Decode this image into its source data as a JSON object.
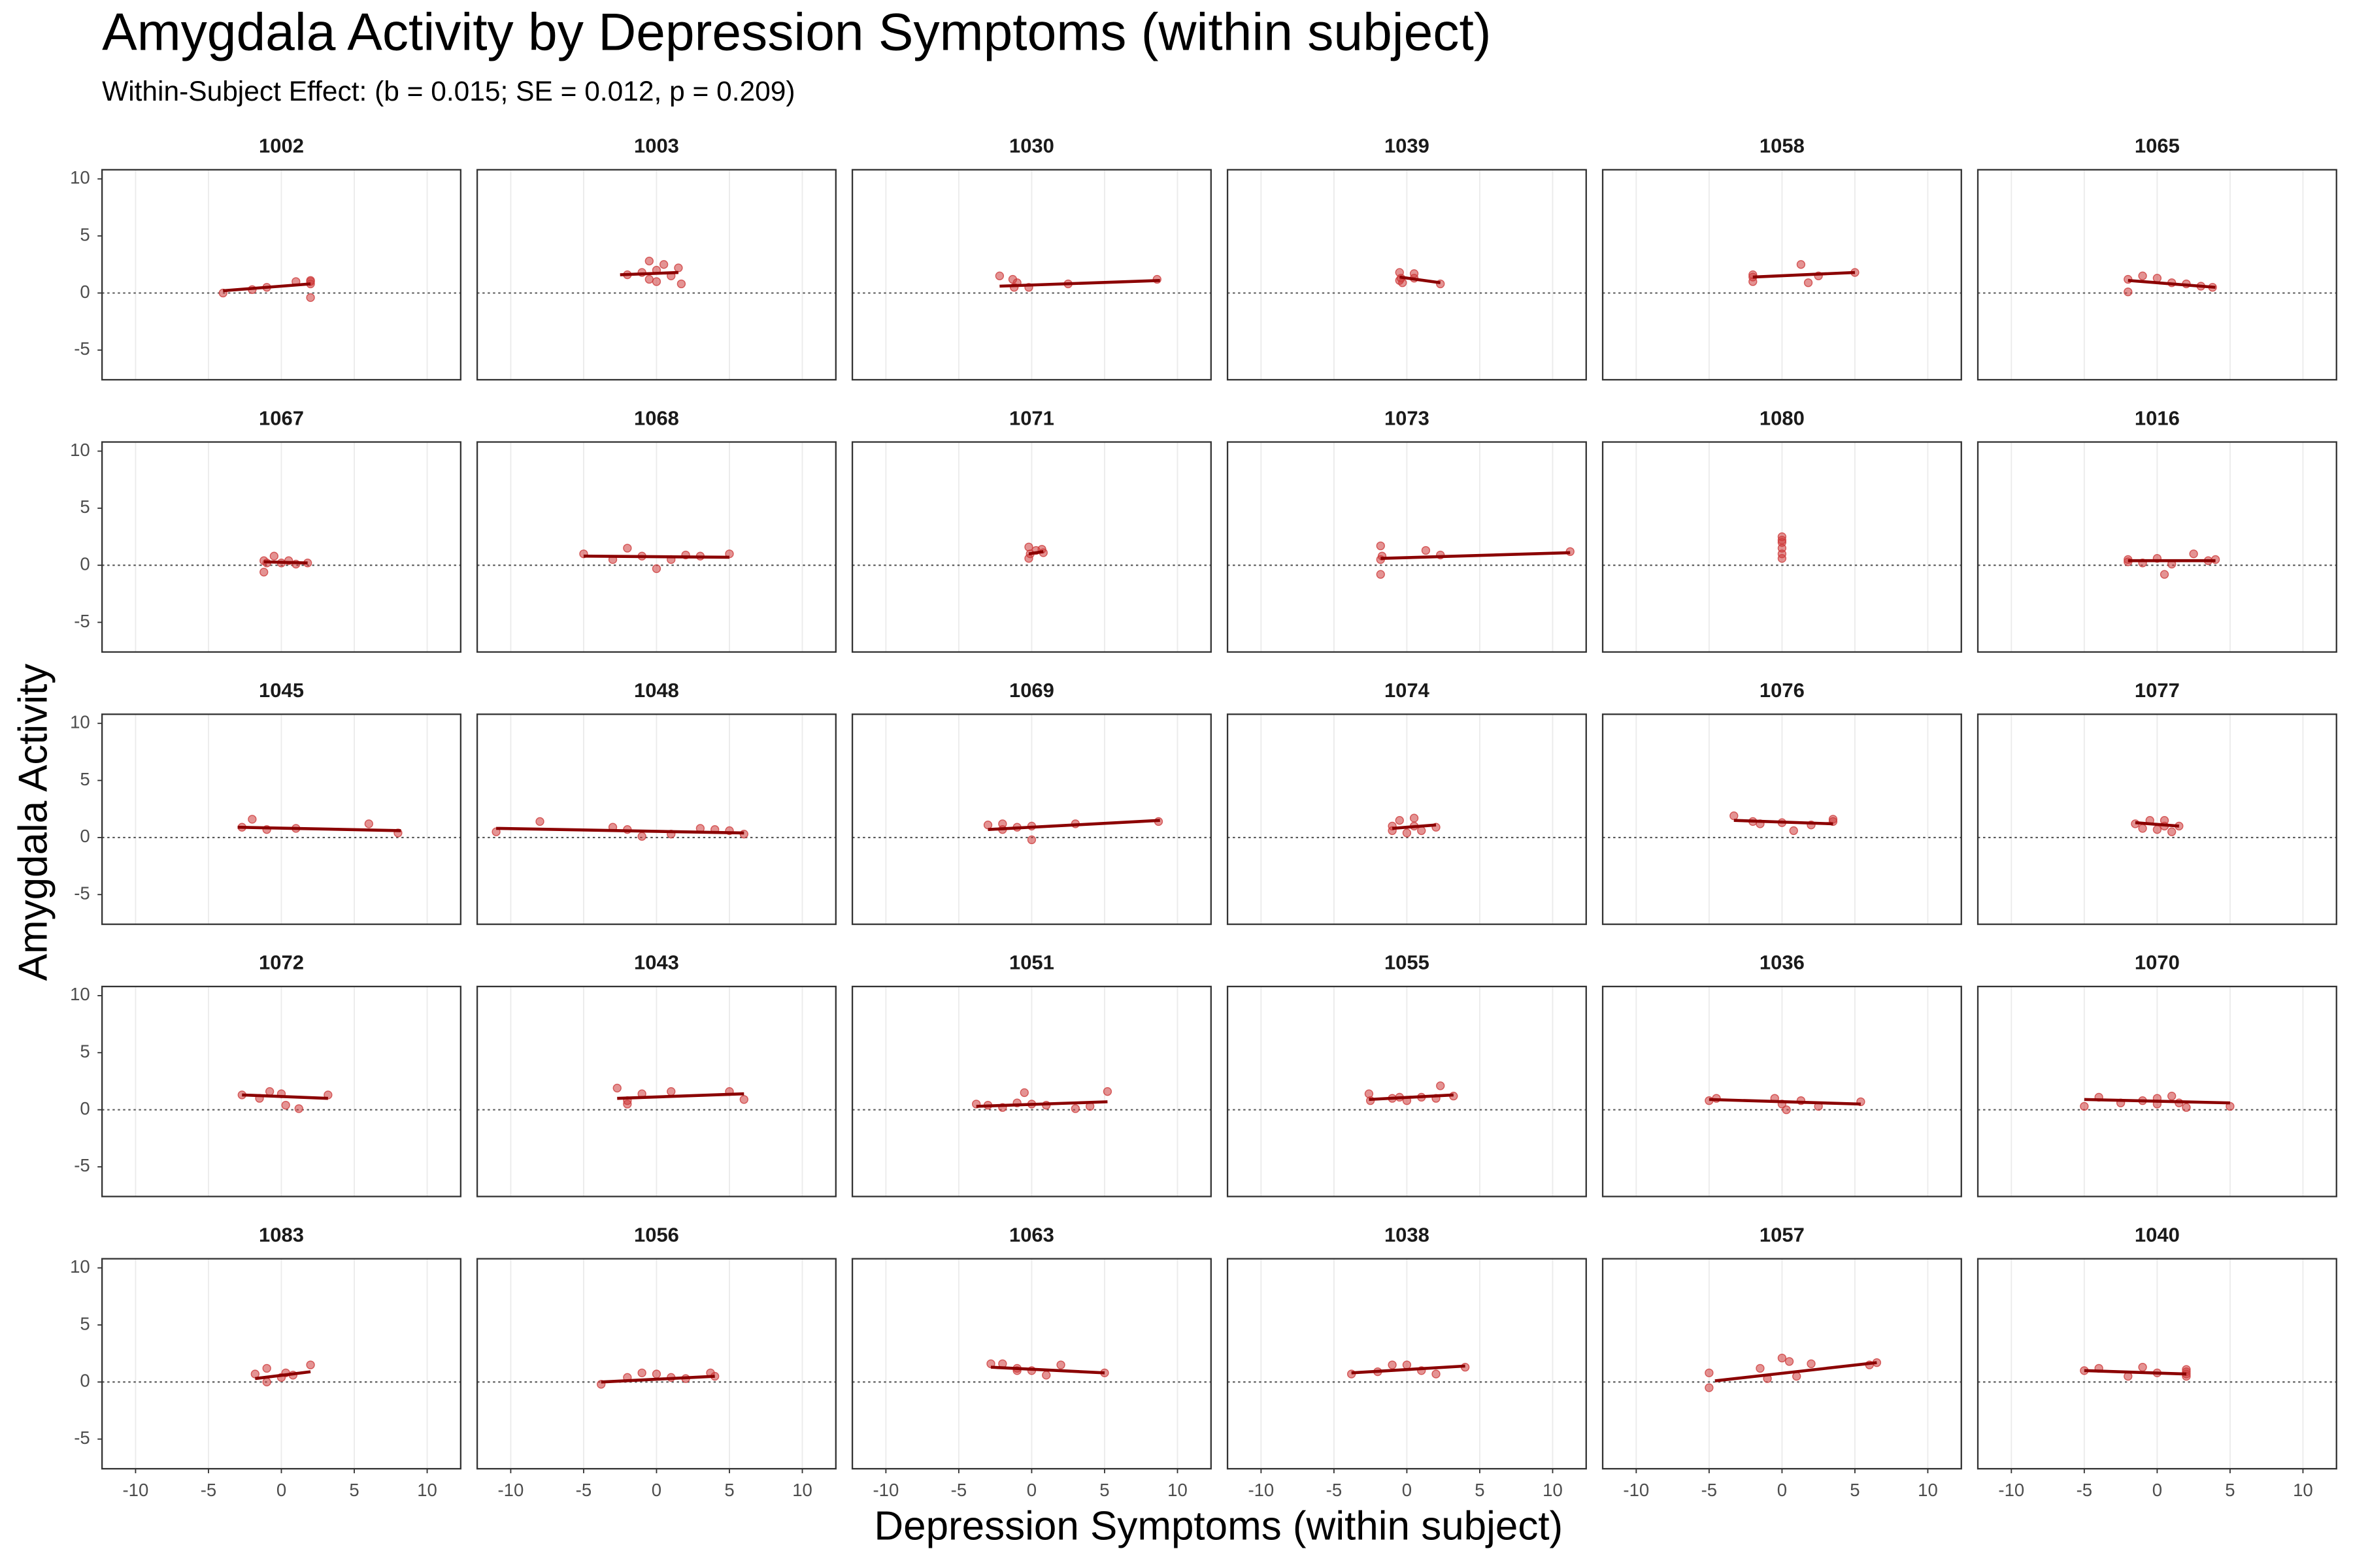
{
  "chart_data": {
    "type": "scatter",
    "title": "Amygdala Activity by Depression Symptoms (within subject)",
    "subtitle": "Within-Subject Effect: (b = 0.015; SE = 0.012, p = 0.209)",
    "xlabel": "Depression Symptoms (within subject)",
    "ylabel": "Amygdala Activity",
    "xlim": [
      -12.3,
      12.3
    ],
    "ylim": [
      -7.6,
      10.8
    ],
    "xticks": [
      -10,
      -5,
      0,
      5,
      10
    ],
    "yticks": [
      -5,
      0,
      5,
      10
    ],
    "hline": 0,
    "grid": true,
    "point_color": "#cd3b3b",
    "line_color": "#8b0000",
    "panels": [
      {
        "title": "1002",
        "x": [
          -4,
          -2,
          -1,
          1,
          2,
          2,
          2,
          2
        ],
        "values": [
          0,
          0.3,
          0.5,
          1.0,
          1.0,
          0.8,
          -0.4,
          1.1
        ],
        "fit": {
          "x": [
            -4,
            2
          ],
          "values": [
            0.2,
            0.8
          ]
        }
      },
      {
        "title": "1003",
        "x": [
          -2,
          -1,
          -0.5,
          -0.5,
          0,
          0,
          0.5,
          1,
          1.5,
          1.7
        ],
        "values": [
          1.6,
          1.8,
          2.8,
          1.2,
          1.0,
          2.0,
          2.5,
          1.5,
          2.2,
          0.8
        ],
        "fit": {
          "x": [
            -2.5,
            1.5
          ],
          "values": [
            1.6,
            1.8
          ]
        }
      },
      {
        "title": "1030",
        "x": [
          -2.2,
          -1.3,
          -1.2,
          -1,
          -0.2,
          2.5,
          8.6
        ],
        "values": [
          1.5,
          1.2,
          0.5,
          0.9,
          0.5,
          0.8,
          1.2
        ],
        "fit": {
          "x": [
            -2.2,
            8.8
          ],
          "values": [
            0.6,
            1.1
          ]
        }
      },
      {
        "title": "1039",
        "x": [
          -0.5,
          -0.5,
          -0.4,
          -0.3,
          0.5,
          0.5,
          2.3
        ],
        "values": [
          1.8,
          1.1,
          1.3,
          0.9,
          1.7,
          1.3,
          0.8
        ],
        "fit": {
          "x": [
            -0.5,
            2.3
          ],
          "values": [
            1.4,
            0.9
          ]
        }
      },
      {
        "title": "1058",
        "x": [
          -2,
          -2,
          -2,
          1.3,
          1.8,
          2.5,
          5
        ],
        "values": [
          1.4,
          1.0,
          1.6,
          2.5,
          0.9,
          1.5,
          1.8
        ],
        "fit": {
          "x": [
            -2,
            5
          ],
          "values": [
            1.4,
            1.8
          ]
        }
      },
      {
        "title": "1065",
        "x": [
          -2,
          -2,
          -1,
          0,
          1,
          2,
          3,
          3.8
        ],
        "values": [
          0.1,
          1.2,
          1.5,
          1.3,
          0.9,
          0.8,
          0.6,
          0.5
        ],
        "fit": {
          "x": [
            -2,
            4
          ],
          "values": [
            1.1,
            0.5
          ]
        }
      },
      {
        "title": "1067",
        "x": [
          -1.2,
          -1.2,
          -1,
          -0.5,
          0,
          0.5,
          1,
          1.8
        ],
        "values": [
          -0.6,
          0.4,
          0.2,
          0.8,
          0.2,
          0.4,
          0.1,
          0.2
        ],
        "fit": {
          "x": [
            -1.2,
            1.8
          ],
          "values": [
            0.3,
            0.2
          ]
        }
      },
      {
        "title": "1068",
        "x": [
          -5,
          -3,
          -2,
          -1,
          0,
          1,
          2,
          3,
          5
        ],
        "values": [
          1.0,
          0.5,
          1.5,
          0.8,
          -0.3,
          0.5,
          0.9,
          0.8,
          1.0
        ],
        "fit": {
          "x": [
            -5,
            5
          ],
          "values": [
            0.8,
            0.7
          ]
        }
      },
      {
        "title": "1071",
        "x": [
          -0.2,
          -0.2,
          -0.1,
          0.3,
          0.7,
          0.8
        ],
        "values": [
          1.6,
          0.6,
          1.0,
          1.3,
          1.4,
          1.1
        ],
        "fit": {
          "x": [
            -0.2,
            0.8
          ],
          "values": [
            1.0,
            1.2
          ]
        }
      },
      {
        "title": "1073",
        "x": [
          -1.8,
          -1.8,
          -1.8,
          -1.7,
          1.3,
          2.3,
          11.2
        ],
        "values": [
          1.7,
          -0.8,
          0.5,
          0.8,
          1.3,
          0.9,
          1.2
        ],
        "fit": {
          "x": [
            -1.8,
            11.2
          ],
          "values": [
            0.6,
            1.1
          ]
        }
      },
      {
        "title": "1080",
        "x": [
          0,
          0,
          0,
          0,
          0,
          0
        ],
        "values": [
          2.5,
          2.0,
          1.5,
          1.0,
          0.6,
          2.2
        ]
      },
      {
        "title": "1016",
        "x": [
          -2,
          -2,
          -1,
          0,
          0.5,
          1,
          2.5,
          3.5,
          4
        ],
        "values": [
          0.3,
          0.5,
          0.2,
          0.6,
          -0.8,
          0.1,
          1.0,
          0.4,
          0.5
        ],
        "fit": {
          "x": [
            -2,
            4
          ],
          "values": [
            0.4,
            0.4
          ]
        }
      },
      {
        "title": "1045",
        "x": [
          -2.7,
          -2,
          -1,
          1,
          6,
          8
        ],
        "values": [
          0.9,
          1.6,
          0.7,
          0.8,
          1.2,
          0.4
        ],
        "fit": {
          "x": [
            -3,
            8.2
          ],
          "values": [
            0.9,
            0.6
          ]
        }
      },
      {
        "title": "1048",
        "x": [
          -11,
          -8,
          -3,
          -2,
          -1,
          1,
          3,
          4,
          5,
          6
        ],
        "values": [
          0.5,
          1.4,
          0.9,
          0.7,
          0.1,
          0.3,
          0.8,
          0.7,
          0.6,
          0.3
        ],
        "fit": {
          "x": [
            -11,
            6
          ],
          "values": [
            0.8,
            0.4
          ]
        }
      },
      {
        "title": "1069",
        "x": [
          -3,
          -2,
          -2,
          -1,
          0,
          0,
          3,
          8.7
        ],
        "values": [
          1.1,
          0.7,
          1.2,
          0.9,
          1.0,
          -0.2,
          1.2,
          1.4
        ],
        "fit": {
          "x": [
            -3,
            8.8
          ],
          "values": [
            0.7,
            1.5
          ]
        }
      },
      {
        "title": "1074",
        "x": [
          -1,
          -1,
          -0.5,
          0,
          0.5,
          0.5,
          1,
          2
        ],
        "values": [
          0.6,
          1.0,
          1.5,
          0.4,
          1.7,
          1.0,
          0.6,
          0.9
        ],
        "fit": {
          "x": [
            -1,
            2
          ],
          "values": [
            0.8,
            1.1
          ]
        }
      },
      {
        "title": "1076",
        "x": [
          -3.3,
          -2,
          -1.5,
          0,
          0.8,
          2,
          3.5,
          3.5
        ],
        "values": [
          1.9,
          1.4,
          1.2,
          1.3,
          0.6,
          1.1,
          1.6,
          1.4
        ],
        "fit": {
          "x": [
            -3.3,
            3.5
          ],
          "values": [
            1.5,
            1.2
          ]
        }
      },
      {
        "title": "1077",
        "x": [
          -1.5,
          -1,
          -0.5,
          0,
          0.5,
          0.5,
          1,
          1.5
        ],
        "values": [
          1.2,
          0.8,
          1.5,
          0.7,
          1.5,
          1.0,
          0.5,
          1.0
        ],
        "fit": {
          "x": [
            -1.5,
            1.5
          ],
          "values": [
            1.3,
            1.0
          ]
        }
      },
      {
        "title": "1072",
        "x": [
          -2.7,
          -1.5,
          -0.8,
          0,
          0.3,
          1.2,
          3.2
        ],
        "values": [
          1.3,
          1.0,
          1.6,
          1.4,
          0.4,
          0.1,
          1.3
        ],
        "fit": {
          "x": [
            -2.7,
            3.2
          ],
          "values": [
            1.3,
            1.0
          ]
        }
      },
      {
        "title": "1043",
        "x": [
          -2.7,
          -2,
          -2,
          -1,
          1,
          5,
          6
        ],
        "values": [
          1.9,
          0.5,
          0.8,
          1.4,
          1.6,
          1.6,
          0.9
        ],
        "fit": {
          "x": [
            -2.7,
            6
          ],
          "values": [
            1.0,
            1.4
          ]
        }
      },
      {
        "title": "1051",
        "x": [
          -3.8,
          -3,
          -2,
          -1,
          -0.5,
          0,
          1,
          3,
          4,
          5.2
        ],
        "values": [
          0.5,
          0.4,
          0.2,
          0.6,
          1.5,
          0.5,
          0.4,
          0.1,
          0.3,
          1.6
        ],
        "fit": {
          "x": [
            -3.8,
            5.2
          ],
          "values": [
            0.3,
            0.7
          ]
        }
      },
      {
        "title": "1055",
        "x": [
          -2.6,
          -2.5,
          -1,
          -0.5,
          0,
          1,
          2,
          2.3,
          3.2
        ],
        "values": [
          1.4,
          0.8,
          1.0,
          1.1,
          0.8,
          1.1,
          1.0,
          2.1,
          1.2
        ],
        "fit": {
          "x": [
            -2.6,
            3.2
          ],
          "values": [
            0.9,
            1.3
          ]
        }
      },
      {
        "title": "1036",
        "x": [
          -5,
          -4.5,
          -0.5,
          0,
          0.3,
          1.3,
          2.5,
          5.4
        ],
        "values": [
          0.8,
          1.0,
          1.0,
          0.5,
          0.0,
          0.8,
          0.3,
          0.7
        ],
        "fit": {
          "x": [
            -5,
            5.4
          ],
          "values": [
            0.9,
            0.5
          ]
        }
      },
      {
        "title": "1070",
        "x": [
          -5,
          -4,
          -2.5,
          -1,
          0,
          0,
          1,
          1.5,
          2,
          5
        ],
        "values": [
          0.3,
          1.1,
          0.6,
          0.8,
          0.5,
          1.0,
          1.2,
          0.6,
          0.2,
          0.3
        ],
        "fit": {
          "x": [
            -5,
            5
          ],
          "values": [
            0.9,
            0.6
          ]
        }
      },
      {
        "title": "1083",
        "x": [
          -1.8,
          -1,
          -1,
          0,
          0.3,
          0.8,
          2
        ],
        "values": [
          0.7,
          0.0,
          1.2,
          0.4,
          0.8,
          0.6,
          1.5
        ],
        "fit": {
          "x": [
            -1.8,
            2
          ],
          "values": [
            0.3,
            0.9
          ]
        }
      },
      {
        "title": "1056",
        "x": [
          -3.8,
          -2,
          -1,
          0,
          1,
          2,
          3.7,
          4
        ],
        "values": [
          -0.2,
          0.4,
          0.8,
          0.7,
          0.4,
          0.3,
          0.8,
          0.5
        ],
        "fit": {
          "x": [
            -3.8,
            4
          ],
          "values": [
            0.0,
            0.5
          ]
        }
      },
      {
        "title": "1063",
        "x": [
          -2.8,
          -2,
          -1,
          -1,
          0,
          1,
          2,
          5
        ],
        "values": [
          1.6,
          1.6,
          1.0,
          1.2,
          1.0,
          0.6,
          1.5,
          0.8
        ],
        "fit": {
          "x": [
            -2.8,
            5
          ],
          "values": [
            1.3,
            0.8
          ]
        }
      },
      {
        "title": "1038",
        "x": [
          -3.8,
          -2,
          -1,
          0,
          1,
          2,
          4
        ],
        "values": [
          0.7,
          0.9,
          1.5,
          1.5,
          1.0,
          0.7,
          1.3
        ],
        "fit": {
          "x": [
            -3.8,
            4
          ],
          "values": [
            0.8,
            1.4
          ]
        }
      },
      {
        "title": "1057",
        "x": [
          -5,
          -5,
          -1.5,
          -1,
          0,
          0.5,
          1,
          2,
          6,
          6.5
        ],
        "values": [
          0.8,
          -0.5,
          1.2,
          0.3,
          2.1,
          1.8,
          0.5,
          1.6,
          1.5,
          1.7
        ],
        "fit": {
          "x": [
            -4.6,
            6.5
          ],
          "values": [
            0.1,
            1.7
          ]
        }
      },
      {
        "title": "1040",
        "x": [
          -5,
          -4,
          -2,
          -1,
          0,
          2,
          2,
          2,
          2
        ],
        "values": [
          1.0,
          1.2,
          0.5,
          1.3,
          0.8,
          0.9,
          0.5,
          0.7,
          1.1
        ],
        "fit": {
          "x": [
            -5,
            2
          ],
          "values": [
            1.0,
            0.7
          ]
        }
      }
    ]
  }
}
